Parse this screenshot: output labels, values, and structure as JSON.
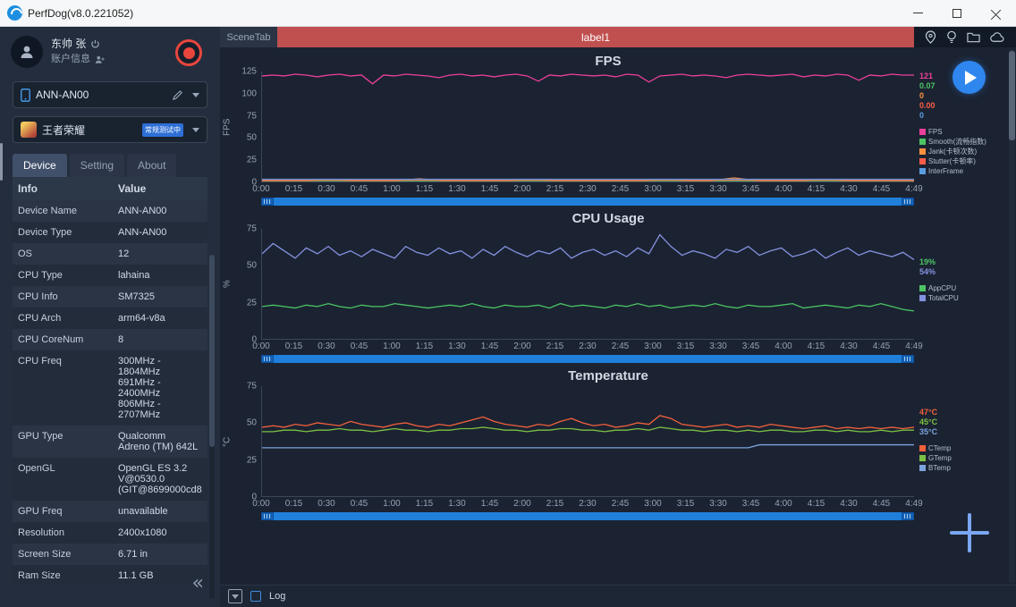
{
  "window": {
    "title": "PerfDog(v8.0.221052)"
  },
  "sidebar": {
    "user": {
      "name": "东帅 张",
      "account": "账户信息"
    },
    "device_select": {
      "value": "ANN-AN00"
    },
    "app_select": {
      "value": "王者荣耀",
      "badge": "常规测试中"
    },
    "tabs": [
      {
        "label": "Device",
        "active": true
      },
      {
        "label": "Setting",
        "active": false
      },
      {
        "label": "About",
        "active": false
      }
    ],
    "table": {
      "headers": [
        "Info",
        "Value"
      ],
      "rows": [
        [
          "Device Name",
          "ANN-AN00"
        ],
        [
          "Device Type",
          "ANN-AN00"
        ],
        [
          "OS",
          "12"
        ],
        [
          "CPU Type",
          "lahaina"
        ],
        [
          "CPU Info",
          "SM7325"
        ],
        [
          "CPU Arch",
          "arm64-v8a"
        ],
        [
          "CPU CoreNum",
          "8"
        ],
        [
          "CPU Freq",
          "300MHz -\n1804MHz\n691MHz -\n2400MHz\n806MHz -\n2707MHz"
        ],
        [
          "GPU Type",
          "Qualcomm\nAdreno (TM) 642L"
        ],
        [
          "OpenGL",
          "OpenGL ES 3.2\nV@0530.0\n(GIT@8699000cd8"
        ],
        [
          "GPU Freq",
          "unavailable"
        ],
        [
          "Resolution",
          "2400x1080"
        ],
        [
          "Screen Size",
          "6.71 in"
        ],
        [
          "Ram Size",
          "11.1 GB"
        ]
      ]
    }
  },
  "scenebar": {
    "tab": "SceneTab",
    "label": "label1"
  },
  "bottombar": {
    "log_label": "Log"
  },
  "chart_data": [
    {
      "type": "line",
      "title": "FPS",
      "ylabel": "FPS",
      "ylim": [
        0,
        125
      ],
      "yticks": [
        0,
        25,
        50,
        75,
        100,
        125
      ],
      "xticks": [
        "0:00",
        "0:15",
        "0:30",
        "0:45",
        "1:00",
        "1:15",
        "1:30",
        "1:45",
        "2:00",
        "2:15",
        "2:30",
        "2:45",
        "3:00",
        "3:15",
        "3:30",
        "3:45",
        "4:00",
        "4:15",
        "4:30",
        "4:45",
        "4:49"
      ],
      "legend_position": "right",
      "grid": false,
      "series": [
        {
          "name": "FPS",
          "color": "#ed3f9c",
          "current": "121",
          "values": [
            120,
            121,
            120,
            122,
            121,
            119,
            121,
            122,
            120,
            121,
            111,
            121,
            120,
            122,
            121,
            120,
            118,
            121,
            122,
            120,
            121,
            119,
            121,
            122,
            120,
            114,
            121,
            120,
            122,
            121,
            120,
            121,
            119,
            122,
            121,
            113,
            120,
            121,
            122,
            120,
            121,
            120,
            118,
            121,
            122,
            121,
            120,
            121,
            122,
            119,
            121,
            120,
            122,
            121,
            115,
            121,
            120,
            122,
            121,
            121
          ]
        },
        {
          "name": "Smooth(流畅指数)",
          "color": "#4cc465",
          "current": "0.07",
          "values": [
            0.3,
            0.3,
            0.3,
            0.3,
            0.3,
            0.3,
            0.3,
            0.3
          ]
        },
        {
          "name": "Jank(卡顿次数)",
          "color": "#ff8f3e",
          "current": "0",
          "values": [
            1,
            1,
            1,
            2,
            1,
            1,
            1,
            3,
            1,
            1,
            1,
            1,
            2,
            1,
            1,
            1,
            1,
            1,
            2,
            1,
            1,
            4,
            1,
            1,
            1,
            2,
            1,
            1,
            1,
            1
          ]
        },
        {
          "name": "Stutter(卡顿率)",
          "color": "#ff5c47",
          "current": "0.00",
          "values": [
            1.5,
            1.5,
            1.5,
            1.5,
            1.5,
            1.5,
            1.5,
            1.5
          ]
        },
        {
          "name": "InterFrame",
          "color": "#5a9be0",
          "current": "0",
          "values": [
            2.5,
            2.5,
            2.5,
            2.5,
            2.5,
            2.5,
            2.5,
            2.5
          ]
        }
      ]
    },
    {
      "type": "line",
      "title": "CPU Usage",
      "ylabel": "%",
      "ylim": [
        0,
        75
      ],
      "yticks": [
        0,
        25,
        50,
        75
      ],
      "xticks": [
        "0:00",
        "0:15",
        "0:30",
        "0:45",
        "1:00",
        "1:15",
        "1:30",
        "1:45",
        "2:00",
        "2:15",
        "2:30",
        "2:45",
        "3:00",
        "3:15",
        "3:30",
        "3:45",
        "4:00",
        "4:15",
        "4:30",
        "4:45",
        "4:49"
      ],
      "legend_position": "right",
      "grid": false,
      "series": [
        {
          "name": "AppCPU",
          "color": "#4cc465",
          "current": "19%",
          "values": [
            22,
            23,
            22,
            21,
            23,
            22,
            24,
            22,
            21,
            23,
            22,
            22,
            24,
            23,
            22,
            21,
            22,
            23,
            22,
            24,
            22,
            21,
            23,
            22,
            22,
            23,
            21,
            24,
            22,
            23,
            22,
            21,
            23,
            22,
            24,
            22,
            23,
            21,
            22,
            23,
            22,
            24,
            22,
            21,
            23,
            22,
            22,
            23,
            24,
            21,
            22,
            23,
            22,
            21,
            23,
            22,
            24,
            22,
            20,
            19
          ]
        },
        {
          "name": "TotalCPU",
          "color": "#8591e0",
          "current": "54%",
          "values": [
            58,
            65,
            60,
            55,
            62,
            58,
            63,
            57,
            60,
            56,
            61,
            58,
            55,
            63,
            59,
            57,
            62,
            58,
            60,
            55,
            61,
            57,
            63,
            59,
            56,
            60,
            58,
            62,
            55,
            59,
            61,
            57,
            60,
            56,
            62,
            58,
            71,
            63,
            57,
            60,
            58,
            55,
            61,
            59,
            63,
            57,
            60,
            62,
            56,
            58,
            61,
            55,
            59,
            62,
            57,
            60,
            58,
            56,
            59,
            54
          ]
        }
      ]
    },
    {
      "type": "line",
      "title": "Temperature",
      "ylabel": "°C",
      "ylim": [
        0,
        75
      ],
      "yticks": [
        0,
        25,
        50,
        75
      ],
      "xticks": [
        "0:00",
        "0:15",
        "0:30",
        "0:45",
        "1:00",
        "1:15",
        "1:30",
        "1:45",
        "2:00",
        "2:15",
        "2:30",
        "2:45",
        "3:00",
        "3:15",
        "3:30",
        "3:45",
        "4:00",
        "4:15",
        "4:30",
        "4:45",
        "4:49"
      ],
      "legend_position": "right",
      "grid": false,
      "series": [
        {
          "name": "CTemp",
          "color": "#f4603c",
          "current": "47°C",
          "values": [
            47,
            48,
            47,
            49,
            48,
            50,
            49,
            48,
            51,
            49,
            48,
            47,
            49,
            50,
            48,
            47,
            49,
            48,
            50,
            52,
            54,
            51,
            49,
            48,
            47,
            49,
            48,
            51,
            53,
            50,
            48,
            49,
            47,
            48,
            50,
            49,
            55,
            53,
            49,
            48,
            47,
            48,
            49,
            47,
            48,
            47,
            49,
            48,
            47,
            46,
            47,
            48,
            46,
            47,
            46,
            47,
            46,
            47,
            46,
            47
          ]
        },
        {
          "name": "GTemp",
          "color": "#7cc043",
          "current": "45°C",
          "values": [
            44,
            44,
            45,
            45,
            44,
            45,
            45,
            46,
            45,
            45,
            44,
            45,
            46,
            45,
            45,
            44,
            45,
            45,
            46,
            46,
            47,
            46,
            45,
            45,
            44,
            45,
            45,
            46,
            46,
            45,
            45,
            44,
            45,
            45,
            46,
            45,
            47,
            46,
            45,
            45,
            44,
            45,
            45,
            44,
            45,
            44,
            45,
            45,
            44,
            44,
            45,
            45,
            44,
            45,
            44,
            44,
            45,
            44,
            45,
            45
          ]
        },
        {
          "name": "BTemp",
          "color": "#7ba3dc",
          "current": "35°C",
          "values": [
            33,
            33,
            33,
            33,
            33,
            33,
            33,
            33,
            33,
            33,
            33,
            33,
            33,
            33,
            33,
            33,
            33,
            33,
            33,
            33,
            33,
            33,
            33,
            33,
            33,
            33,
            33,
            33,
            33,
            33,
            33,
            33,
            33,
            33,
            33,
            33,
            33,
            33,
            33,
            33,
            33,
            33,
            33,
            33,
            33,
            35,
            35,
            35,
            35,
            35,
            35,
            35,
            35,
            35,
            35,
            35,
            35,
            35,
            35,
            35
          ]
        }
      ]
    }
  ]
}
